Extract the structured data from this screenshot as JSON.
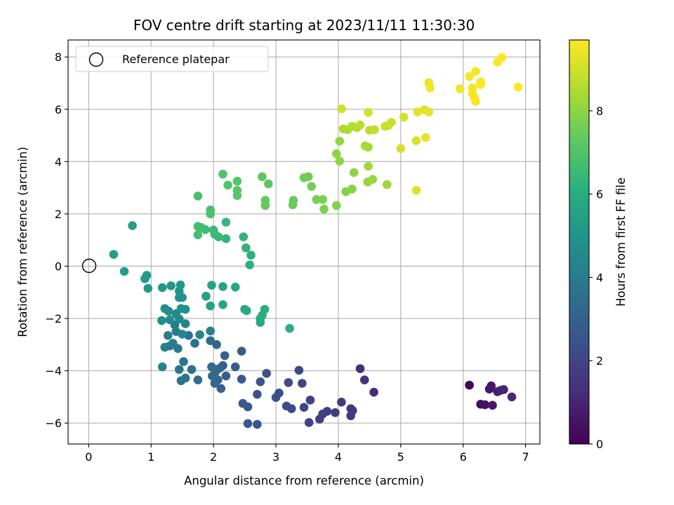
{
  "chart_data": {
    "type": "scatter",
    "title": "FOV centre drift starting at 2023/11/11 11:30:30",
    "xlabel": "Angular distance from reference (arcmin)",
    "ylabel": "Rotation from reference (arcmin)",
    "xlim": [
      -0.33,
      7.23
    ],
    "ylim": [
      -6.8,
      8.65
    ],
    "xticks": [
      0,
      1,
      2,
      3,
      4,
      5,
      6,
      7
    ],
    "yticks": [
      -6,
      -4,
      -2,
      0,
      2,
      4,
      6,
      8
    ],
    "grid": true,
    "legend": {
      "position": "top-left",
      "entries": [
        "Reference platepar"
      ]
    },
    "reference_marker": {
      "x": 0,
      "y": 0,
      "label": "Reference platepar"
    },
    "colorbar": {
      "label": "Hours from first FF file",
      "colormap": "viridis",
      "range": [
        0,
        9.7
      ],
      "ticks": [
        0,
        2,
        4,
        6,
        8
      ]
    },
    "points": [
      {
        "x": 6.1,
        "y": -4.55,
        "h": 0.15
      },
      {
        "x": 6.28,
        "y": -5.28,
        "h": 0.3
      },
      {
        "x": 6.35,
        "y": -5.3,
        "h": 0.4
      },
      {
        "x": 6.42,
        "y": -4.7,
        "h": 0.5
      },
      {
        "x": 6.45,
        "y": -4.58,
        "h": 0.6
      },
      {
        "x": 6.47,
        "y": -5.32,
        "h": 0.7
      },
      {
        "x": 6.55,
        "y": -4.8,
        "h": 0.8
      },
      {
        "x": 6.6,
        "y": -4.75,
        "h": 0.9
      },
      {
        "x": 6.65,
        "y": -4.72,
        "h": 1.0
      },
      {
        "x": 6.78,
        "y": -5.0,
        "h": 1.1
      },
      {
        "x": 4.57,
        "y": -4.82,
        "h": 1.2
      },
      {
        "x": 4.35,
        "y": -3.92,
        "h": 1.3
      },
      {
        "x": 4.42,
        "y": -4.35,
        "h": 1.4
      },
      {
        "x": 4.2,
        "y": -5.45,
        "h": 1.5
      },
      {
        "x": 4.23,
        "y": -5.52,
        "h": 1.55
      },
      {
        "x": 4.2,
        "y": -5.72,
        "h": 1.6
      },
      {
        "x": 4.05,
        "y": -5.2,
        "h": 1.65
      },
      {
        "x": 3.95,
        "y": -5.6,
        "h": 1.7
      },
      {
        "x": 3.82,
        "y": -5.55,
        "h": 1.75
      },
      {
        "x": 3.75,
        "y": -5.65,
        "h": 1.8
      },
      {
        "x": 3.7,
        "y": -5.85,
        "h": 1.85
      },
      {
        "x": 3.55,
        "y": -5.12,
        "h": 1.9
      },
      {
        "x": 3.53,
        "y": -5.98,
        "h": 1.95
      },
      {
        "x": 3.45,
        "y": -5.4,
        "h": 2.0
      },
      {
        "x": 3.42,
        "y": -4.48,
        "h": 2.05
      },
      {
        "x": 3.37,
        "y": -3.98,
        "h": 2.1
      },
      {
        "x": 3.25,
        "y": -5.45,
        "h": 2.15
      },
      {
        "x": 3.2,
        "y": -4.45,
        "h": 2.2
      },
      {
        "x": 3.17,
        "y": -5.35,
        "h": 2.25
      },
      {
        "x": 3.05,
        "y": -4.85,
        "h": 2.3
      },
      {
        "x": 3.0,
        "y": -5.02,
        "h": 2.35
      },
      {
        "x": 2.85,
        "y": -4.1,
        "h": 2.4
      },
      {
        "x": 2.75,
        "y": -4.42,
        "h": 2.45
      },
      {
        "x": 2.7,
        "y": -4.9,
        "h": 2.5
      },
      {
        "x": 2.7,
        "y": -6.05,
        "h": 2.55
      },
      {
        "x": 2.55,
        "y": -6.02,
        "h": 2.6
      },
      {
        "x": 2.55,
        "y": -5.38,
        "h": 2.65
      },
      {
        "x": 2.47,
        "y": -5.25,
        "h": 2.7
      },
      {
        "x": 2.45,
        "y": -4.32,
        "h": 2.75
      },
      {
        "x": 2.45,
        "y": -3.25,
        "h": 2.8
      },
      {
        "x": 2.35,
        "y": -3.85,
        "h": 2.85
      },
      {
        "x": 2.2,
        "y": -4.2,
        "h": 2.9
      },
      {
        "x": 2.18,
        "y": -3.42,
        "h": 2.95
      },
      {
        "x": 2.15,
        "y": -3.8,
        "h": 3.0
      },
      {
        "x": 2.12,
        "y": -4.68,
        "h": 3.05
      },
      {
        "x": 2.1,
        "y": -3.9,
        "h": 3.1
      },
      {
        "x": 2.07,
        "y": -4.35,
        "h": 3.15
      },
      {
        "x": 2.05,
        "y": -3.0,
        "h": 3.2
      },
      {
        "x": 2.03,
        "y": -4.05,
        "h": 3.25
      },
      {
        "x": 2.02,
        "y": -4.48,
        "h": 3.3
      },
      {
        "x": 1.98,
        "y": -4.2,
        "h": 3.35
      },
      {
        "x": 1.97,
        "y": -3.85,
        "h": 3.4
      },
      {
        "x": 1.95,
        "y": -2.85,
        "h": 3.45
      },
      {
        "x": 1.75,
        "y": -4.35,
        "h": 3.5
      },
      {
        "x": 1.7,
        "y": -2.95,
        "h": 3.55
      },
      {
        "x": 1.65,
        "y": -3.95,
        "h": 3.6
      },
      {
        "x": 1.6,
        "y": -2.65,
        "h": 3.65
      },
      {
        "x": 1.55,
        "y": -4.28,
        "h": 3.7
      },
      {
        "x": 1.52,
        "y": -3.65,
        "h": 3.75
      },
      {
        "x": 1.48,
        "y": -4.38,
        "h": 3.8
      },
      {
        "x": 1.45,
        "y": -3.95,
        "h": 3.85
      },
      {
        "x": 1.43,
        "y": -3.15,
        "h": 3.9
      },
      {
        "x": 1.4,
        "y": -2.5,
        "h": 3.95
      },
      {
        "x": 1.38,
        "y": -2.25,
        "h": 4.0
      },
      {
        "x": 1.35,
        "y": -2.95,
        "h": 4.05
      },
      {
        "x": 1.3,
        "y": -3.05,
        "h": 4.1
      },
      {
        "x": 1.27,
        "y": -2.65,
        "h": 4.15
      },
      {
        "x": 1.22,
        "y": -3.1,
        "h": 4.2
      },
      {
        "x": 1.18,
        "y": -3.85,
        "h": 4.25
      },
      {
        "x": 1.95,
        "y": -2.48,
        "h": 4.3
      },
      {
        "x": 1.78,
        "y": -2.62,
        "h": 4.35
      },
      {
        "x": 1.55,
        "y": -2.2,
        "h": 4.4
      },
      {
        "x": 1.5,
        "y": -2.6,
        "h": 4.45
      },
      {
        "x": 1.45,
        "y": -2.02,
        "h": 4.5
      },
      {
        "x": 1.4,
        "y": -1.82,
        "h": 4.55
      },
      {
        "x": 1.3,
        "y": -2.05,
        "h": 4.6
      },
      {
        "x": 1.28,
        "y": -1.72,
        "h": 4.65
      },
      {
        "x": 1.22,
        "y": -1.62,
        "h": 4.7
      },
      {
        "x": 1.17,
        "y": -2.08,
        "h": 4.75
      },
      {
        "x": 1.55,
        "y": -1.65,
        "h": 4.8
      },
      {
        "x": 1.48,
        "y": -1.62,
        "h": 4.85
      },
      {
        "x": 1.45,
        "y": -1.2,
        "h": 4.9
      },
      {
        "x": 1.5,
        "y": -1.2,
        "h": 4.95
      },
      {
        "x": 1.45,
        "y": -0.95,
        "h": 5.0
      },
      {
        "x": 1.47,
        "y": -0.72,
        "h": 5.05
      },
      {
        "x": 1.32,
        "y": -0.75,
        "h": 5.1
      },
      {
        "x": 1.18,
        "y": -0.82,
        "h": 5.15
      },
      {
        "x": 0.95,
        "y": -0.85,
        "h": 5.2
      },
      {
        "x": 0.93,
        "y": -0.35,
        "h": 5.25
      },
      {
        "x": 0.9,
        "y": -0.48,
        "h": 5.3
      },
      {
        "x": 0.57,
        "y": -0.2,
        "h": 5.35
      },
      {
        "x": 0.4,
        "y": 0.45,
        "h": 5.4
      },
      {
        "x": 0.7,
        "y": 1.55,
        "h": 5.45
      },
      {
        "x": 1.95,
        "y": -1.52,
        "h": 5.5
      },
      {
        "x": 1.88,
        "y": -1.15,
        "h": 5.55
      },
      {
        "x": 1.97,
        "y": -0.73,
        "h": 5.6
      },
      {
        "x": 2.15,
        "y": -0.78,
        "h": 5.65
      },
      {
        "x": 2.15,
        "y": -1.47,
        "h": 5.7
      },
      {
        "x": 2.35,
        "y": -0.8,
        "h": 5.75
      },
      {
        "x": 2.5,
        "y": -1.65,
        "h": 5.8
      },
      {
        "x": 2.53,
        "y": -1.7,
        "h": 5.85
      },
      {
        "x": 2.75,
        "y": -2.15,
        "h": 5.9
      },
      {
        "x": 2.75,
        "y": -2.0,
        "h": 5.95
      },
      {
        "x": 2.78,
        "y": -1.88,
        "h": 6.0
      },
      {
        "x": 2.82,
        "y": -1.65,
        "h": 6.05
      },
      {
        "x": 3.22,
        "y": -2.38,
        "h": 6.1
      },
      {
        "x": 2.58,
        "y": 0.05,
        "h": 6.15
      },
      {
        "x": 2.6,
        "y": 0.42,
        "h": 6.2
      },
      {
        "x": 2.52,
        "y": 0.7,
        "h": 6.25
      },
      {
        "x": 2.48,
        "y": 1.12,
        "h": 6.3
      },
      {
        "x": 2.2,
        "y": 1.05,
        "h": 6.35
      },
      {
        "x": 2.2,
        "y": 1.68,
        "h": 6.4
      },
      {
        "x": 2.08,
        "y": 1.12,
        "h": 6.45
      },
      {
        "x": 2.02,
        "y": 1.22,
        "h": 6.5
      },
      {
        "x": 2.0,
        "y": 1.38,
        "h": 6.55
      },
      {
        "x": 1.87,
        "y": 1.4,
        "h": 6.6
      },
      {
        "x": 1.8,
        "y": 1.48,
        "h": 6.65
      },
      {
        "x": 1.75,
        "y": 1.52,
        "h": 6.7
      },
      {
        "x": 1.75,
        "y": 1.2,
        "h": 6.75
      },
      {
        "x": 1.75,
        "y": 2.68,
        "h": 6.8
      },
      {
        "x": 1.95,
        "y": 2.15,
        "h": 6.85
      },
      {
        "x": 1.95,
        "y": 2.0,
        "h": 6.9
      },
      {
        "x": 2.15,
        "y": 3.52,
        "h": 6.95
      },
      {
        "x": 2.23,
        "y": 3.1,
        "h": 7.0
      },
      {
        "x": 2.38,
        "y": 3.25,
        "h": 7.05
      },
      {
        "x": 2.38,
        "y": 2.9,
        "h": 7.1
      },
      {
        "x": 2.38,
        "y": 2.7,
        "h": 7.15
      },
      {
        "x": 2.78,
        "y": 3.42,
        "h": 7.2
      },
      {
        "x": 2.88,
        "y": 3.15,
        "h": 7.25
      },
      {
        "x": 2.83,
        "y": 2.52,
        "h": 7.3
      },
      {
        "x": 2.83,
        "y": 2.32,
        "h": 7.35
      },
      {
        "x": 3.28,
        "y": 2.52,
        "h": 7.4
      },
      {
        "x": 3.27,
        "y": 2.35,
        "h": 7.45
      },
      {
        "x": 3.45,
        "y": 3.38,
        "h": 7.5
      },
      {
        "x": 3.52,
        "y": 3.42,
        "h": 7.55
      },
      {
        "x": 3.57,
        "y": 3.05,
        "h": 7.6
      },
      {
        "x": 3.65,
        "y": 2.55,
        "h": 7.65
      },
      {
        "x": 3.75,
        "y": 2.55,
        "h": 7.7
      },
      {
        "x": 3.77,
        "y": 2.18,
        "h": 7.75
      },
      {
        "x": 3.97,
        "y": 2.32,
        "h": 7.8
      },
      {
        "x": 4.12,
        "y": 2.85,
        "h": 7.85
      },
      {
        "x": 4.22,
        "y": 2.95,
        "h": 7.9
      },
      {
        "x": 4.25,
        "y": 3.58,
        "h": 7.95
      },
      {
        "x": 3.97,
        "y": 4.3,
        "h": 8.0
      },
      {
        "x": 4.02,
        "y": 4.02,
        "h": 8.05
      },
      {
        "x": 4.02,
        "y": 4.78,
        "h": 8.1
      },
      {
        "x": 4.47,
        "y": 3.22,
        "h": 8.15
      },
      {
        "x": 4.55,
        "y": 3.32,
        "h": 8.2
      },
      {
        "x": 4.78,
        "y": 3.12,
        "h": 8.25
      },
      {
        "x": 4.48,
        "y": 3.82,
        "h": 8.3
      },
      {
        "x": 4.43,
        "y": 4.6,
        "h": 8.35
      },
      {
        "x": 4.48,
        "y": 4.55,
        "h": 8.4
      },
      {
        "x": 4.08,
        "y": 5.25,
        "h": 8.45
      },
      {
        "x": 4.15,
        "y": 5.22,
        "h": 8.5
      },
      {
        "x": 4.22,
        "y": 5.35,
        "h": 8.55
      },
      {
        "x": 4.3,
        "y": 5.3,
        "h": 8.6
      },
      {
        "x": 4.35,
        "y": 5.4,
        "h": 8.65
      },
      {
        "x": 4.5,
        "y": 5.2,
        "h": 8.7
      },
      {
        "x": 4.58,
        "y": 5.22,
        "h": 8.75
      },
      {
        "x": 4.75,
        "y": 5.35,
        "h": 8.8
      },
      {
        "x": 4.8,
        "y": 5.38,
        "h": 8.85
      },
      {
        "x": 4.85,
        "y": 5.5,
        "h": 8.9
      },
      {
        "x": 4.05,
        "y": 6.02,
        "h": 8.95
      },
      {
        "x": 4.48,
        "y": 5.88,
        "h": 9.0
      },
      {
        "x": 5.0,
        "y": 4.5,
        "h": 9.05
      },
      {
        "x": 5.05,
        "y": 5.7,
        "h": 9.1
      },
      {
        "x": 5.25,
        "y": 4.8,
        "h": 9.15
      },
      {
        "x": 5.25,
        "y": 2.9,
        "h": 9.2
      },
      {
        "x": 5.27,
        "y": 5.9,
        "h": 9.25
      },
      {
        "x": 5.38,
        "y": 5.98,
        "h": 9.3
      },
      {
        "x": 5.45,
        "y": 5.9,
        "h": 9.35
      },
      {
        "x": 5.4,
        "y": 4.92,
        "h": 9.4
      },
      {
        "x": 5.45,
        "y": 7.02,
        "h": 9.45
      },
      {
        "x": 5.47,
        "y": 6.82,
        "h": 9.5
      },
      {
        "x": 5.95,
        "y": 6.78,
        "h": 9.5
      },
      {
        "x": 6.1,
        "y": 7.25,
        "h": 9.55
      },
      {
        "x": 6.15,
        "y": 6.82,
        "h": 9.55
      },
      {
        "x": 6.15,
        "y": 6.6,
        "h": 9.6
      },
      {
        "x": 6.18,
        "y": 6.45,
        "h": 9.6
      },
      {
        "x": 6.2,
        "y": 6.3,
        "h": 9.6
      },
      {
        "x": 6.2,
        "y": 7.45,
        "h": 9.6
      },
      {
        "x": 6.28,
        "y": 7.05,
        "h": 9.65
      },
      {
        "x": 6.28,
        "y": 6.95,
        "h": 9.65
      },
      {
        "x": 6.55,
        "y": 7.8,
        "h": 9.65
      },
      {
        "x": 6.62,
        "y": 7.98,
        "h": 9.7
      },
      {
        "x": 6.88,
        "y": 6.85,
        "h": 9.7
      }
    ]
  }
}
